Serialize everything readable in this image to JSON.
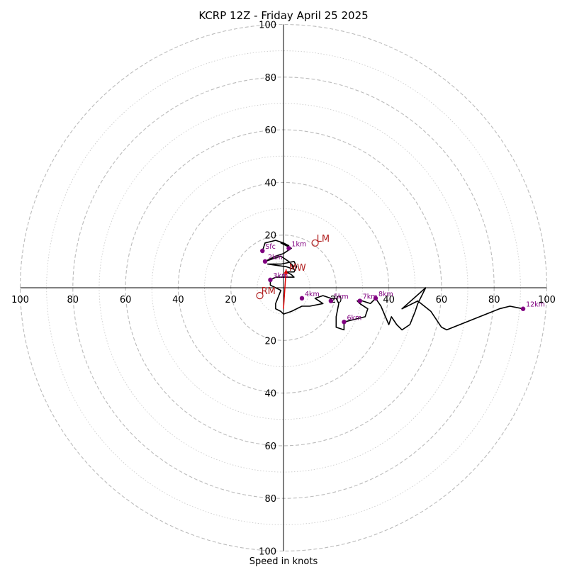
{
  "chart_data": {
    "type": "hodograph",
    "title": "KCRP 12Z - Friday April 25 2025",
    "xlabel": "Speed in knots",
    "ring_max": 100,
    "ring_step": 20,
    "tick_labels": [
      "100",
      "80",
      "60",
      "40",
      "20",
      "20",
      "40",
      "60",
      "80",
      "100"
    ],
    "grid": "dashed rings every 20 kt, dotted rings every 10 kt",
    "colors": {
      "trace": "#000000",
      "height_marker": "#800080",
      "motion": "#b22222",
      "mean_wind_vector": "#e00000",
      "grid": "#aaaaaa"
    },
    "trace": [
      [
        -8,
        14
      ],
      [
        -7,
        17
      ],
      [
        -3,
        18
      ],
      [
        0,
        17
      ],
      [
        2,
        16
      ],
      [
        -1,
        17
      ],
      [
        1,
        16
      ],
      [
        3,
        15
      ],
      [
        0,
        13
      ],
      [
        -3,
        12
      ],
      [
        -5,
        11
      ],
      [
        -7,
        10
      ],
      [
        -4,
        11
      ],
      [
        -1,
        12
      ],
      [
        2,
        10
      ],
      [
        4,
        8
      ],
      [
        3,
        9
      ],
      [
        4,
        7
      ],
      [
        1,
        8
      ],
      [
        -6,
        9
      ],
      [
        -1,
        9
      ],
      [
        4,
        10
      ],
      [
        5,
        8
      ],
      [
        4,
        6
      ],
      [
        1,
        6
      ],
      [
        3,
        5
      ],
      [
        4,
        4
      ],
      [
        3,
        4
      ],
      [
        -3,
        4
      ],
      [
        -5,
        3
      ],
      [
        -5,
        1
      ],
      [
        -3,
        0
      ],
      [
        -1,
        -1
      ],
      [
        -3,
        -6
      ],
      [
        -3,
        -8
      ],
      [
        -1,
        -9
      ],
      [
        0,
        -10
      ],
      [
        3,
        -9
      ],
      [
        7,
        -7
      ],
      [
        10,
        -7
      ],
      [
        15,
        -6
      ],
      [
        12,
        -4
      ],
      [
        15,
        -3
      ],
      [
        18,
        -4
      ],
      [
        20,
        -4
      ],
      [
        21,
        -6
      ],
      [
        20,
        -11
      ],
      [
        20,
        -15
      ],
      [
        23,
        -16
      ],
      [
        23,
        -13
      ],
      [
        27,
        -12
      ],
      [
        31,
        -11
      ],
      [
        32,
        -8
      ],
      [
        29,
        -6
      ],
      [
        28,
        -5
      ],
      [
        30,
        -5
      ],
      [
        33,
        -6
      ],
      [
        35,
        -4
      ],
      [
        37,
        -7
      ],
      [
        40,
        -14
      ],
      [
        41,
        -11
      ],
      [
        43,
        -14
      ],
      [
        45,
        -16
      ],
      [
        48,
        -14
      ],
      [
        50,
        -9
      ],
      [
        51,
        -6
      ],
      [
        54,
        0
      ],
      [
        45,
        -8
      ],
      [
        51,
        -5
      ],
      [
        56,
        -9
      ],
      [
        60,
        -15
      ],
      [
        62,
        -16
      ],
      [
        82,
        -8
      ],
      [
        86,
        -7
      ],
      [
        91,
        -8
      ]
    ],
    "height_markers": [
      {
        "label": "Sfc",
        "u": -8,
        "v": 14
      },
      {
        "label": "1km",
        "u": 2,
        "v": 15
      },
      {
        "label": "2km",
        "u": -7,
        "v": 10
      },
      {
        "label": "3km",
        "u": -5,
        "v": 3
      },
      {
        "label": "4km",
        "u": 7,
        "v": -4
      },
      {
        "label": "5km",
        "u": 18,
        "v": -5
      },
      {
        "label": "6km",
        "u": 23,
        "v": -13
      },
      {
        "label": "7km",
        "u": 29,
        "v": -5
      },
      {
        "label": "8km",
        "u": 35,
        "v": -4
      },
      {
        "label": "12km",
        "u": 91,
        "v": -8
      }
    ],
    "storm_motions": [
      {
        "label": "LM",
        "u": 12,
        "v": 17
      },
      {
        "label": "RM",
        "u": -9,
        "v": -3
      },
      {
        "label": "MW",
        "u": 1,
        "v": 7
      }
    ],
    "mean_wind_vector": {
      "from": [
        0,
        -8
      ],
      "to": [
        1,
        7
      ]
    }
  }
}
